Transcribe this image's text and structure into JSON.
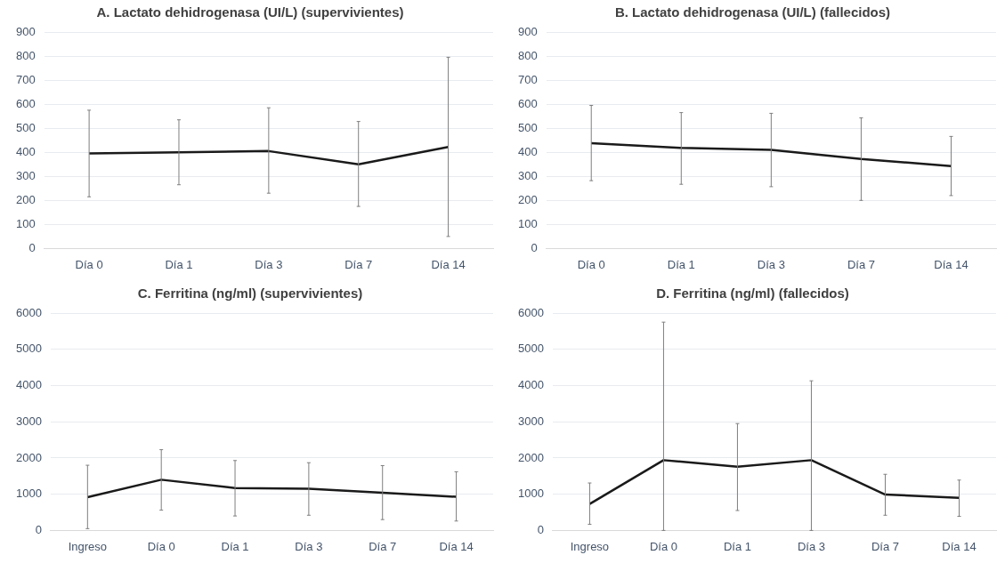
{
  "chart_data": [
    {
      "type": "line",
      "title": "A. Lactato dehidrogenasa (UI/L) (supervivientes)",
      "categories": [
        "Día 0",
        "Día 1",
        "Día 3",
        "Día 7",
        "Día 14"
      ],
      "series": [
        {
          "color": "#1a1a1a",
          "values": [
            395,
            400,
            405,
            350,
            422
          ],
          "errors": [
            [
              215,
              575
            ],
            [
              265,
              535
            ],
            [
              230,
              585
            ],
            [
              175,
              528
            ],
            [
              50,
              795
            ]
          ]
        }
      ],
      "ylim": [
        0,
        900
      ],
      "yticks": [
        0,
        100,
        200,
        300,
        400,
        500,
        600,
        700,
        800,
        900
      ],
      "grid": "y",
      "marker": "none",
      "legend": false
    },
    {
      "type": "line",
      "title": "B. Lactato dehidrogenasa (UI/L) (fallecidos)",
      "categories": [
        "Día 0",
        "Día 1",
        "Día 3",
        "Día 7",
        "Día 14"
      ],
      "series": [
        {
          "color": "#1a1a1a",
          "values": [
            438,
            418,
            410,
            372,
            343
          ],
          "errors": [
            [
              282,
              595
            ],
            [
              267,
              565
            ],
            [
              257,
              562
            ],
            [
              200,
              543
            ],
            [
              220,
              466
            ]
          ]
        }
      ],
      "ylim": [
        0,
        900
      ],
      "yticks": [
        0,
        100,
        200,
        300,
        400,
        500,
        600,
        700,
        800,
        900
      ],
      "grid": "y",
      "marker": "none",
      "legend": false
    },
    {
      "type": "line",
      "title": "C. Ferritina (ng/ml) (supervivientes)",
      "categories": [
        "Ingreso",
        "Día 0",
        "Día 1",
        "Día 3",
        "Día 7",
        "Día 14"
      ],
      "series": [
        {
          "color": "#1a1a1a",
          "values": [
            920,
            1400,
            1170,
            1150,
            1040,
            930
          ],
          "errors": [
            [
              50,
              1800
            ],
            [
              560,
              2230
            ],
            [
              400,
              1930
            ],
            [
              420,
              1870
            ],
            [
              300,
              1790
            ],
            [
              260,
              1620
            ]
          ]
        }
      ],
      "ylim": [
        0,
        6000
      ],
      "yticks": [
        0,
        1000,
        2000,
        3000,
        4000,
        5000,
        6000
      ],
      "grid": "y",
      "marker": "none",
      "legend": false
    },
    {
      "type": "line",
      "title": "D. Ferritina (ng/ml) (fallecidos)",
      "categories": [
        "Ingreso",
        "Día 0",
        "Día 1",
        "Día 3",
        "Día 7",
        "Día 14"
      ],
      "series": [
        {
          "color": "#1a1a1a",
          "values": [
            730,
            1940,
            1760,
            1940,
            990,
            900
          ],
          "errors": [
            [
              170,
              1310
            ],
            [
              0,
              5750
            ],
            [
              550,
              2950
            ],
            [
              0,
              4130
            ],
            [
              420,
              1550
            ],
            [
              390,
              1390
            ]
          ]
        }
      ],
      "ylim": [
        0,
        6000
      ],
      "yticks": [
        0,
        1000,
        2000,
        3000,
        4000,
        5000,
        6000
      ],
      "grid": "y",
      "marker": "none",
      "legend": false
    }
  ]
}
